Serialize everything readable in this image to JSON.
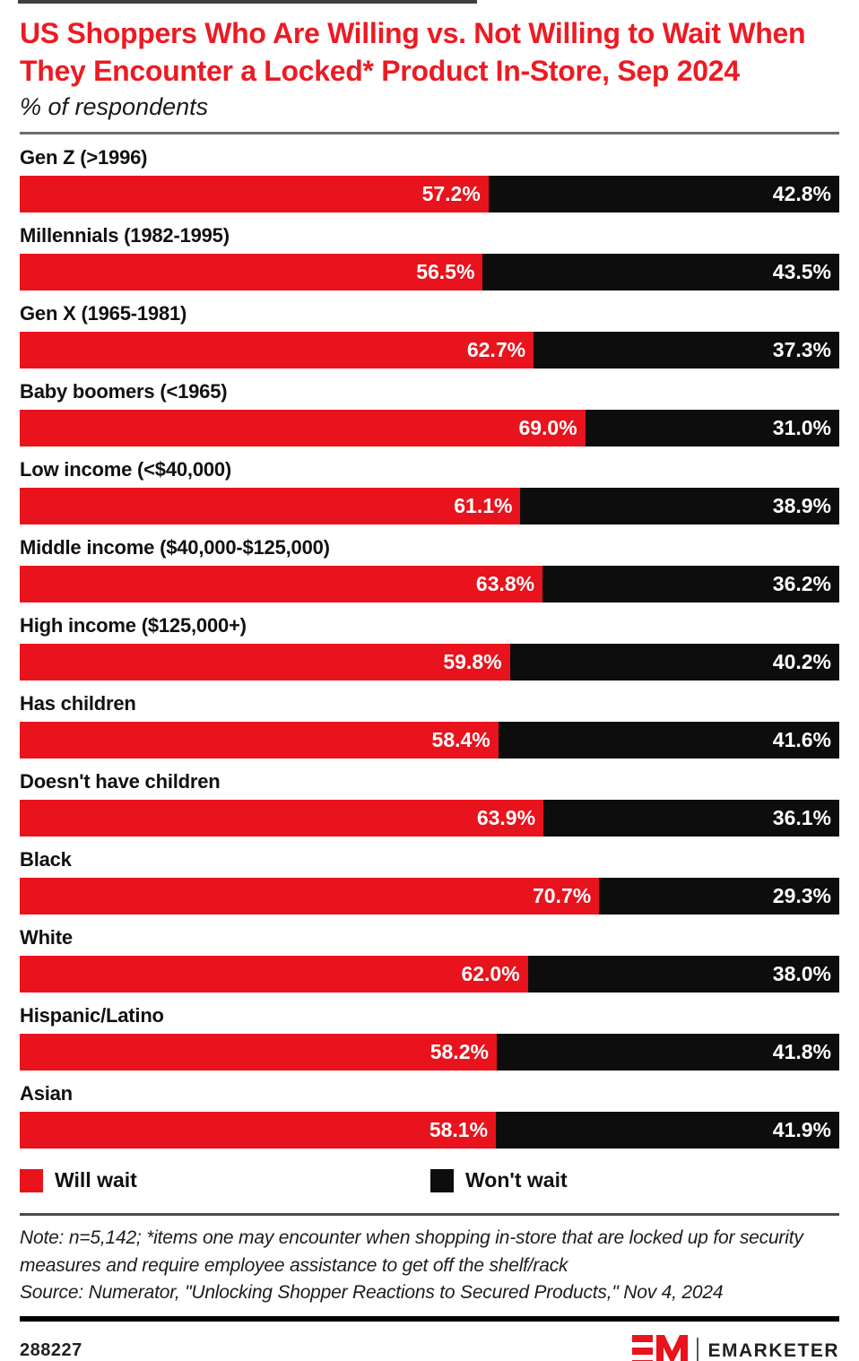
{
  "title": "US Shoppers Who Are Willing vs. Not Willing to Wait When They Encounter a Locked* Product In-Store, Sep 2024",
  "subtitle": "% of respondents",
  "colors": {
    "title_red": "#ec1b23",
    "will_wait_red": "#e8131c",
    "wont_wait_black": "#0d0d0d",
    "value_label_white": "#ffffff"
  },
  "chart_data": {
    "type": "bar",
    "orientation": "horizontal-stacked",
    "title": "US Shoppers Who Are Willing vs. Not Willing to Wait When They Encounter a Locked* Product In-Store, Sep 2024",
    "subtitle": "% of respondents",
    "value_suffix": "%",
    "xlim": [
      0,
      100
    ],
    "grid": false,
    "legend_position": "bottom",
    "categories": [
      "Gen Z (>1996)",
      "Millennials (1982-1995)",
      "Gen X (1965-1981)",
      "Baby boomers (<1965)",
      "Low income (<$40,000)",
      "Middle income ($40,000-$125,000)",
      "High income ($125,000+)",
      "Has children",
      "Doesn't have children",
      "Black",
      "White",
      "Hispanic/Latino",
      "Asian"
    ],
    "series": [
      {
        "name": "Will wait",
        "color": "#e8131c",
        "values": [
          57.2,
          56.5,
          62.7,
          69.0,
          61.1,
          63.8,
          59.8,
          58.4,
          63.9,
          70.7,
          62.0,
          58.2,
          58.1
        ]
      },
      {
        "name": "Won't wait",
        "color": "#0d0d0d",
        "values": [
          42.8,
          43.5,
          37.3,
          31.0,
          38.9,
          36.2,
          40.2,
          41.6,
          36.1,
          29.3,
          38.0,
          41.8,
          41.9
        ]
      }
    ]
  },
  "legend": {
    "will_wait": "Will wait",
    "wont_wait": "Won't wait"
  },
  "note": "Note: n=5,142; *items one may encounter when shopping in-store that are locked up for security measures and require employee assistance to get off the shelf/rack",
  "source": "Source: Numerator, \"Unlocking Shopper Reactions to Secured Products,\" Nov 4, 2024",
  "footer": {
    "chart_id": "288227",
    "brand_monogram": "EM",
    "brand_name": "EMARKETER"
  }
}
